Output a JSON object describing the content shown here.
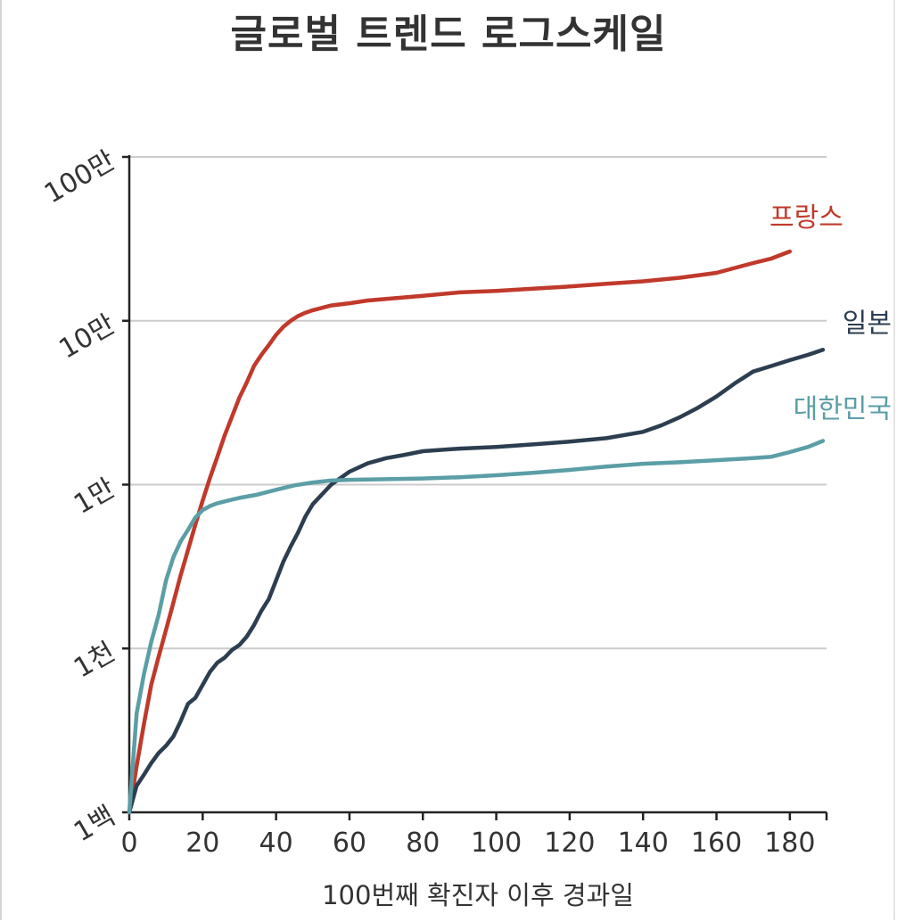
{
  "chart_data": {
    "type": "line",
    "title": "글로벌 트렌드 로그스케일",
    "xlabel": "100번째 확진자 이후 경과일",
    "ylabel": "",
    "y_scale": "log",
    "xlim": [
      0,
      190
    ],
    "ylim": [
      100,
      1000000
    ],
    "x_ticks": [
      0,
      20,
      40,
      60,
      80,
      100,
      120,
      140,
      160,
      180
    ],
    "y_ticks": [
      {
        "value": 100,
        "label": "1백"
      },
      {
        "value": 1000,
        "label": "1천"
      },
      {
        "value": 10000,
        "label": "1만"
      },
      {
        "value": 100000,
        "label": "10만"
      },
      {
        "value": 1000000,
        "label": "100만"
      }
    ],
    "grid": true,
    "series": [
      {
        "name": "프랑스",
        "color": "#c0392b",
        "x": [
          0,
          2,
          4,
          6,
          8,
          10,
          12,
          14,
          16,
          18,
          20,
          22,
          24,
          26,
          28,
          30,
          32,
          34,
          36,
          38,
          40,
          42,
          44,
          46,
          48,
          50,
          55,
          60,
          65,
          70,
          80,
          90,
          100,
          110,
          120,
          130,
          140,
          150,
          160,
          165,
          170,
          175,
          180
        ],
        "y": [
          100,
          191,
          348,
          603,
          890,
          1300,
          1900,
          2800,
          4000,
          5700,
          8000,
          11000,
          14800,
          20000,
          26000,
          34000,
          42000,
          53000,
          62000,
          71000,
          82000,
          92000,
          100000,
          107000,
          112000,
          116000,
          124000,
          128000,
          133000,
          136000,
          142000,
          149000,
          152000,
          157000,
          162000,
          168000,
          174000,
          183000,
          196000,
          210000,
          225000,
          240000,
          265000
        ]
      },
      {
        "name": "일본",
        "color": "#2c3e50",
        "x": [
          0,
          2,
          4,
          6,
          8,
          10,
          12,
          14,
          16,
          18,
          20,
          22,
          24,
          26,
          28,
          30,
          32,
          34,
          36,
          38,
          40,
          42,
          44,
          46,
          48,
          50,
          55,
          60,
          65,
          70,
          75,
          80,
          90,
          100,
          110,
          120,
          130,
          140,
          145,
          150,
          155,
          160,
          165,
          170,
          175,
          180,
          185,
          189
        ],
        "y": [
          100,
          145,
          170,
          200,
          230,
          255,
          290,
          360,
          460,
          500,
          600,
          720,
          820,
          880,
          980,
          1050,
          1180,
          1390,
          1700,
          2000,
          2600,
          3400,
          4200,
          5100,
          6400,
          7600,
          10000,
          12000,
          13500,
          14500,
          15200,
          16000,
          16600,
          17000,
          17600,
          18300,
          19200,
          21000,
          23000,
          25800,
          29500,
          34500,
          41500,
          49000,
          53000,
          57500,
          62000,
          66500
        ]
      },
      {
        "name": "대한민국",
        "color": "#5b9ea6",
        "x": [
          0,
          2,
          4,
          6,
          8,
          10,
          12,
          14,
          16,
          18,
          20,
          22,
          24,
          26,
          28,
          30,
          35,
          40,
          45,
          50,
          55,
          60,
          70,
          80,
          90,
          100,
          110,
          120,
          130,
          140,
          150,
          160,
          170,
          175,
          180,
          185,
          189
        ],
        "y": [
          100,
          400,
          700,
          1100,
          1600,
          2600,
          3600,
          4500,
          5300,
          6300,
          7000,
          7400,
          7700,
          7900,
          8100,
          8300,
          8700,
          9300,
          9900,
          10300,
          10600,
          10700,
          10800,
          10900,
          11100,
          11400,
          11800,
          12300,
          12900,
          13400,
          13700,
          14100,
          14500,
          14800,
          15800,
          17000,
          18500
        ]
      }
    ]
  }
}
